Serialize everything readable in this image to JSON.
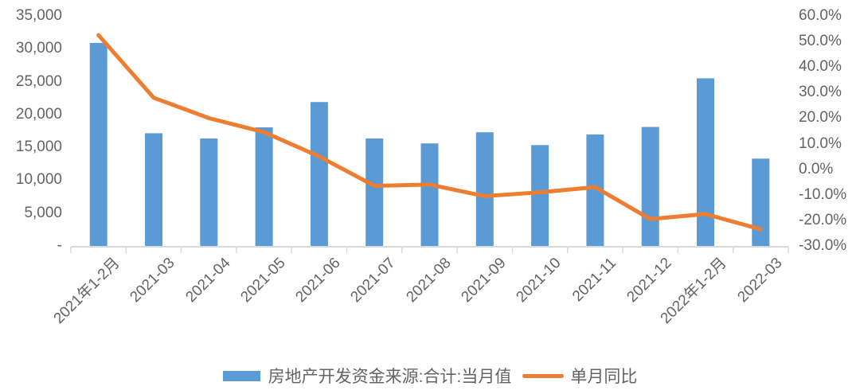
{
  "chart_data": {
    "type": "bar",
    "subtype": "bar-line-combo",
    "title": "",
    "categories": [
      "2021年1-2月",
      "2021-03",
      "2021-04",
      "2021-05",
      "2021-06",
      "2021-07",
      "2021-08",
      "2021-09",
      "2021-10",
      "2021-11",
      "2021-12",
      "2022年1-2月",
      "2022-03"
    ],
    "series": [
      {
        "name": "房地产开发资金来源:合计:当月值",
        "type": "bar",
        "axis": "left",
        "color": "#5B9BD5",
        "values": [
          30900,
          17150,
          16350,
          18050,
          21900,
          16350,
          15600,
          17300,
          15350,
          16950,
          18100,
          25500,
          13280
        ]
      },
      {
        "name": "单月同比",
        "type": "line",
        "axis": "right",
        "color": "#ED7D31",
        "values": [
          52.5,
          28.0,
          20.0,
          14.5,
          5.0,
          -6.5,
          -6.0,
          -10.5,
          -9.0,
          -7.0,
          -19.5,
          -17.5,
          -23.5
        ]
      }
    ],
    "left_axis": {
      "min": 0,
      "max": 35000,
      "tick_labels": [
        "35,000",
        "30,000",
        "25,000",
        "20,000",
        "15,000",
        "10,000",
        "5,000",
        "-"
      ]
    },
    "right_axis": {
      "min": -30,
      "max": 60,
      "tick_labels": [
        "60.0%",
        "50.0%",
        "40.0%",
        "30.0%",
        "20.0%",
        "10.0%",
        "0.0%",
        "-10.0%",
        "-20.0%",
        "-30.0%"
      ]
    },
    "legend_position": "bottom",
    "grid": false,
    "colors": {
      "bar": "#5B9BD5",
      "line": "#ED7D31",
      "axis": "#D9D9D9",
      "text": "#636363"
    }
  }
}
